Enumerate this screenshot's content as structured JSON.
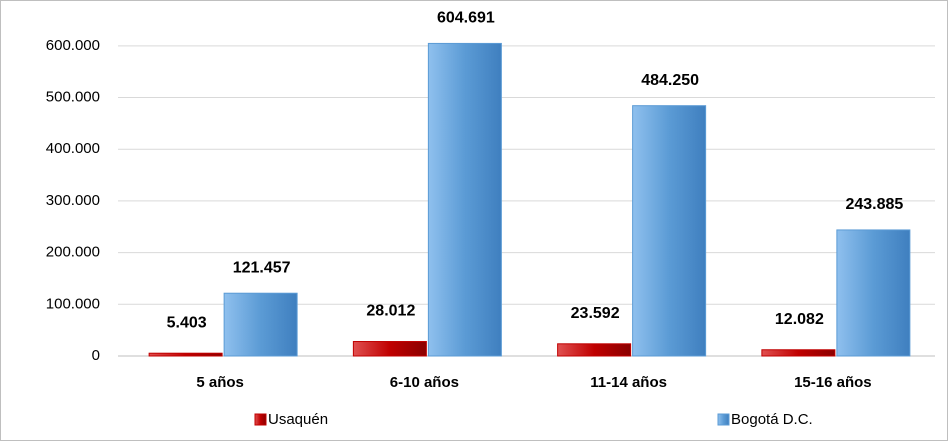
{
  "chart_data": {
    "type": "bar",
    "categories": [
      "5 años",
      "6-10 años",
      "11-14 años",
      "15-16 años"
    ],
    "series": [
      {
        "name": "Usaquén",
        "color": "#c00000",
        "values": [
          5403,
          28012,
          23592,
          12082
        ],
        "value_labels": [
          "5.403",
          "28.012",
          "23.592",
          "12.082"
        ]
      },
      {
        "name": "Bogotá D.C.",
        "color": "#5b9bd5",
        "values": [
          121457,
          604691,
          484250,
          243885
        ],
        "value_labels": [
          "121.457",
          "604.691",
          "484.250",
          "243.885"
        ]
      }
    ],
    "ylim": [
      0,
      650000
    ],
    "yticks": [
      {
        "value": 0,
        "label": "0"
      },
      {
        "value": 100000,
        "label": "100.000"
      },
      {
        "value": 200000,
        "label": "200.000"
      },
      {
        "value": 300000,
        "label": "300.000"
      },
      {
        "value": 400000,
        "label": "400.000"
      },
      {
        "value": 500000,
        "label": "500.000"
      },
      {
        "value": 600000,
        "label": "600.000"
      }
    ],
    "grid": true,
    "legend": "bottom"
  }
}
